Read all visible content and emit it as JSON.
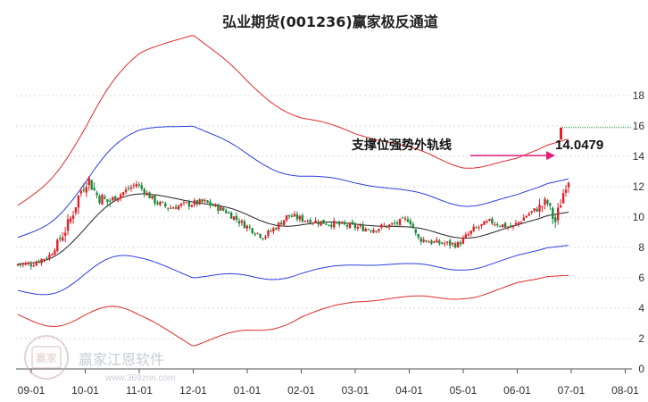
{
  "chart_data": {
    "type": "candlestick",
    "title": "弘业期货(001236)赢家极反通道",
    "y_ticks": [
      0,
      2,
      4,
      6,
      8,
      10,
      12,
      14,
      16,
      18
    ],
    "ylim": [
      0,
      19
    ],
    "x_labels": [
      "09-01",
      "10-01",
      "11-01",
      "12-01",
      "01-01",
      "02-01",
      "03-01",
      "04-01",
      "05-01",
      "06-01",
      "07-01",
      "08-01"
    ],
    "annotation": {
      "label": "支撑位强势外轨线",
      "value": "14.0479",
      "y": 14.05
    },
    "top_marker_value": 15.9,
    "colors": {
      "up": "#e0212a",
      "down": "#1a8a3a",
      "outer": "#e02a2a",
      "inner": "#2b3ee0",
      "mid": "#222222",
      "arrow": "#e0207a"
    }
  },
  "watermark": {
    "name": "赢家江恩软件",
    "badge": "赢家",
    "url": "www.369znn.com"
  }
}
